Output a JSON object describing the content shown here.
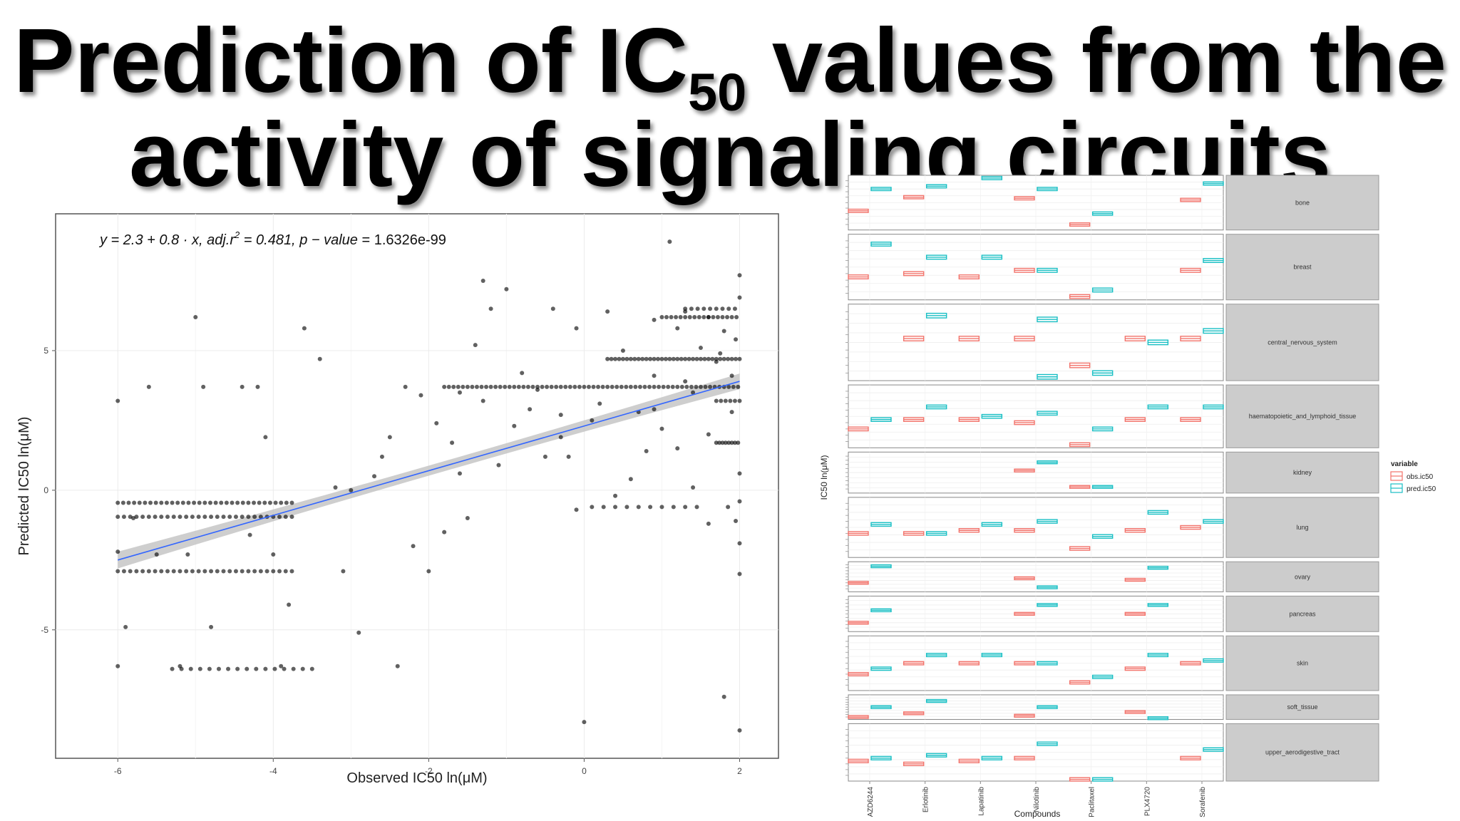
{
  "slide": {
    "title_pre": "Prediction of IC",
    "title_sub": "50",
    "title_post": " values from the",
    "title_line2": "activity of signaling circuits"
  },
  "chart_data": [
    {
      "type": "scatter",
      "xlabel": "Observed IC50 ln(μM)",
      "ylabel": "Predicted IC50 ln(μM)",
      "xlim": [
        -6.8,
        2.5
      ],
      "ylim": [
        -9.6,
        9.9
      ],
      "x_ticks": [
        -6,
        -4,
        -2,
        0,
        2
      ],
      "y_ticks": [
        -5,
        0,
        5
      ],
      "grid": true,
      "annotation": {
        "prefix": "y = 2.3 + 0.8 · x,  ",
        "adj_r2_label": "adj.r",
        "adj_r2_exp": "2",
        "adj_r2_value": " = 0.481,  ",
        "p_label": "p − value",
        "p_value": " = 1.6326e-99"
      },
      "fit": {
        "intercept": 2.3,
        "slope": 0.8,
        "x_range": [
          -6,
          2
        ]
      },
      "point_rows": [
        [
          -0.45,
          -6.0,
          -3.7,
          0.07
        ],
        [
          -0.95,
          -6.0,
          -3.75,
          0.08
        ],
        [
          -2.9,
          -6.0,
          -3.7,
          0.08
        ],
        [
          -6.4,
          -5.3,
          -3.5,
          0.12
        ],
        [
          3.7,
          -1.8,
          2.0,
          0.06
        ],
        [
          4.7,
          0.3,
          2.0,
          0.05
        ],
        [
          6.2,
          1.0,
          2.0,
          0.06
        ],
        [
          6.5,
          1.3,
          2.0,
          0.08
        ],
        [
          1.7,
          1.7,
          2.0,
          0.04
        ],
        [
          3.2,
          1.7,
          2.0,
          0.06
        ],
        [
          -0.6,
          0.1,
          1.5,
          0.15
        ]
      ],
      "points": [
        [
          -6.0,
          3.2
        ],
        [
          -5.9,
          -4.9
        ],
        [
          -5.6,
          3.7
        ],
        [
          -6.0,
          -6.3
        ],
        [
          -5.2,
          -6.3
        ],
        [
          -5.0,
          6.2
        ],
        [
          -4.9,
          3.7
        ],
        [
          -4.8,
          -4.9
        ],
        [
          -4.4,
          3.7
        ],
        [
          -4.2,
          3.7
        ],
        [
          -4.1,
          1.9
        ],
        [
          -3.8,
          -4.1
        ],
        [
          -3.6,
          5.8
        ],
        [
          -3.4,
          4.7
        ],
        [
          -3.2,
          0.1
        ],
        [
          -3.0,
          0.0
        ],
        [
          -2.9,
          -5.1
        ],
        [
          -2.7,
          0.5
        ],
        [
          -2.5,
          1.9
        ],
        [
          -2.4,
          -6.3
        ],
        [
          -2.6,
          1.2
        ],
        [
          -2.3,
          3.7
        ],
        [
          -2.1,
          3.4
        ],
        [
          -1.9,
          2.4
        ],
        [
          -1.7,
          1.7
        ],
        [
          -1.5,
          -1.0
        ],
        [
          -1.4,
          5.2
        ],
        [
          -1.3,
          7.5
        ],
        [
          -1.2,
          6.5
        ],
        [
          -1.0,
          7.2
        ],
        [
          -0.8,
          4.2
        ],
        [
          -0.6,
          3.6
        ],
        [
          -0.4,
          6.5
        ],
        [
          -0.3,
          2.7
        ],
        [
          -0.2,
          1.2
        ],
        [
          -0.1,
          5.8
        ],
        [
          0.0,
          -8.3
        ],
        [
          0.3,
          6.4
        ],
        [
          0.5,
          5.0
        ],
        [
          0.7,
          2.8
        ],
        [
          0.9,
          4.1
        ],
        [
          1.0,
          2.2
        ],
        [
          1.1,
          8.9
        ],
        [
          1.2,
          5.8
        ],
        [
          1.3,
          3.9
        ],
        [
          1.5,
          5.1
        ],
        [
          1.7,
          4.6
        ],
        [
          1.8,
          -7.4
        ],
        [
          1.9,
          4.1
        ],
        [
          2.0,
          -3.0
        ],
        [
          2.0,
          -8.6
        ],
        [
          2.0,
          7.7
        ],
        [
          2.0,
          6.9
        ],
        [
          1.95,
          5.4
        ],
        [
          1.9,
          2.8
        ],
        [
          2.0,
          0.6
        ],
        [
          2.0,
          -0.4
        ],
        [
          2.0,
          -1.9
        ],
        [
          1.95,
          -1.1
        ],
        [
          1.85,
          -0.6
        ],
        [
          1.6,
          -1.2
        ],
        [
          1.4,
          0.1
        ],
        [
          1.2,
          1.5
        ],
        [
          0.8,
          1.4
        ],
        [
          0.6,
          0.4
        ],
        [
          0.4,
          -0.2
        ],
        [
          -0.1,
          -0.7
        ],
        [
          -0.5,
          1.2
        ],
        [
          -0.9,
          2.3
        ],
        [
          -1.1,
          0.9
        ],
        [
          -1.6,
          0.6
        ],
        [
          -1.8,
          -1.5
        ],
        [
          -2.2,
          -2.0
        ],
        [
          -2.0,
          -2.9
        ],
        [
          -3.1,
          -2.9
        ],
        [
          -4.0,
          -2.3
        ],
        [
          -4.3,
          -1.6
        ],
        [
          -5.1,
          -2.3
        ],
        [
          -5.5,
          -2.3
        ],
        [
          -3.9,
          -6.3
        ],
        [
          -5.8,
          -1.0
        ],
        [
          -6.0,
          -2.2
        ],
        [
          -0.3,
          1.9
        ],
        [
          0.1,
          2.5
        ],
        [
          0.2,
          3.1
        ],
        [
          -0.7,
          2.9
        ],
        [
          -1.3,
          3.2
        ],
        [
          -1.6,
          3.5
        ],
        [
          0.9,
          2.9
        ],
        [
          1.4,
          3.5
        ],
        [
          1.6,
          2.0
        ],
        [
          1.75,
          4.9
        ],
        [
          1.8,
          5.7
        ],
        [
          1.6,
          6.2
        ],
        [
          1.3,
          6.4
        ],
        [
          0.9,
          6.1
        ]
      ]
    },
    {
      "type": "box",
      "ylabel": "IC50 ln(μM)",
      "xlabel": "Compounds",
      "categories": [
        "AZD6244",
        "Erlotinib",
        "Lapatinib",
        "Nilotinib",
        "Paclitaxel",
        "PLX4720",
        "Sorafenib"
      ],
      "legend": {
        "title": "variable",
        "items": [
          "obs.ic50",
          "pred.ic50"
        ],
        "placement": "right"
      },
      "series_colors": {
        "obs": "#f2736b",
        "pred": "#19bfc4"
      },
      "panels": [
        {
          "label": "bone",
          "weight": 1.0,
          "obs": [
            0.35,
            0.6,
            null,
            0.58,
            null,
            null,
            0.55
          ],
          "pred": [
            0.75,
            0.8,
            0.95,
            0.75,
            0.3,
            null,
            0.85
          ],
          "obs_extra": {
            "4": 0.1
          }
        },
        {
          "label": "breast",
          "weight": 1.2,
          "obs": [
            0.35,
            0.4,
            0.35,
            0.45,
            0.05,
            null,
            0.45
          ],
          "pred": [
            0.85,
            0.65,
            0.65,
            0.45,
            0.15,
            null,
            0.6
          ]
        },
        {
          "label": "central_nervous_system",
          "weight": 1.4,
          "obs": [
            null,
            0.55,
            0.55,
            0.55,
            0.2,
            0.55,
            0.55
          ],
          "pred": [
            null,
            0.85,
            null,
            0.8,
            0.1,
            0.5,
            0.65
          ],
          "pred_extra": {
            "3": 0.05
          }
        },
        {
          "label": "haematopoietic_and_lymphoid_tissue",
          "weight": 1.15,
          "obs": [
            0.3,
            0.45,
            0.45,
            0.4,
            0.05,
            0.45,
            0.45
          ],
          "pred": [
            0.45,
            0.65,
            0.5,
            0.55,
            0.3,
            0.65,
            0.65
          ]
        },
        {
          "label": "kidney",
          "weight": 0.75,
          "obs": [
            null,
            null,
            null,
            0.55,
            0.15,
            null,
            null
          ],
          "pred": [
            null,
            null,
            null,
            0.75,
            0.15,
            null,
            null
          ]
        },
        {
          "label": "lung",
          "weight": 1.1,
          "obs": [
            0.4,
            0.4,
            0.45,
            0.45,
            0.15,
            0.45,
            0.5
          ],
          "pred": [
            0.55,
            0.4,
            0.55,
            0.6,
            0.35,
            0.75,
            0.6
          ]
        },
        {
          "label": "ovary",
          "weight": 0.55,
          "obs": [
            0.3,
            null,
            null,
            0.45,
            null,
            0.4,
            null
          ],
          "pred": [
            0.85,
            null,
            null,
            0.15,
            null,
            0.8,
            null
          ]
        },
        {
          "label": "pancreas",
          "weight": 0.65,
          "obs": [
            0.25,
            null,
            null,
            0.5,
            null,
            0.5,
            null
          ],
          "pred": [
            0.6,
            null,
            null,
            0.75,
            null,
            0.75,
            null
          ]
        },
        {
          "label": "skin",
          "weight": 1.0,
          "obs": [
            0.3,
            0.5,
            0.5,
            0.5,
            0.15,
            0.4,
            0.5
          ],
          "pred": [
            0.4,
            0.65,
            0.65,
            0.5,
            0.25,
            0.65,
            0.55
          ]
        },
        {
          "label": "soft_tissue",
          "weight": 0.45,
          "obs": [
            0.1,
            0.25,
            null,
            0.15,
            null,
            0.3,
            null
          ],
          "pred": [
            0.5,
            0.75,
            null,
            0.5,
            null,
            0.05,
            null
          ]
        },
        {
          "label": "upper_aerodigestive_tract",
          "weight": 1.05,
          "obs": [
            0.35,
            0.3,
            0.35,
            0.4,
            0.03,
            null,
            0.4
          ],
          "pred": [
            0.4,
            0.45,
            0.4,
            0.65,
            0.03,
            null,
            0.55
          ]
        }
      ]
    }
  ]
}
